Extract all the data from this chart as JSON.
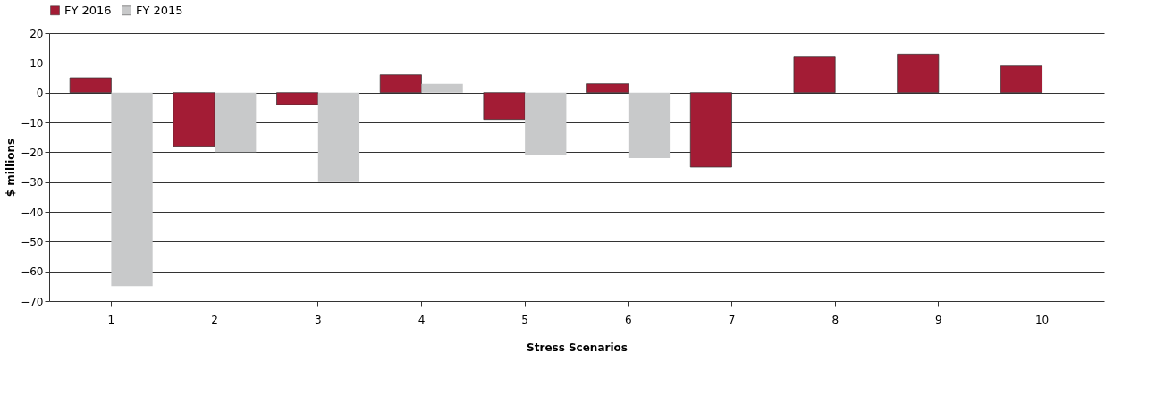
{
  "chart_data": {
    "type": "bar",
    "xlabel": "Stress Scenarios",
    "ylabel": "$ millions",
    "categories": [
      "1",
      "2",
      "3",
      "4",
      "5",
      "6",
      "7",
      "8",
      "9",
      "10"
    ],
    "series": [
      {
        "name": "FY 2016",
        "color": "#a31c35",
        "values": [
          5,
          -18,
          -4,
          6,
          -9,
          3,
          -25,
          12,
          13,
          9
        ]
      },
      {
        "name": "FY 2015",
        "color": "#c8c9ca",
        "values": [
          -65,
          -20,
          -30,
          3,
          -21,
          -22,
          0,
          0,
          0,
          0
        ]
      }
    ],
    "ylim": [
      -70,
      20
    ],
    "yticks": [
      -70,
      -60,
      -50,
      -40,
      -30,
      -20,
      -10,
      0,
      10,
      20
    ],
    "grid": "y",
    "legend": "top"
  }
}
